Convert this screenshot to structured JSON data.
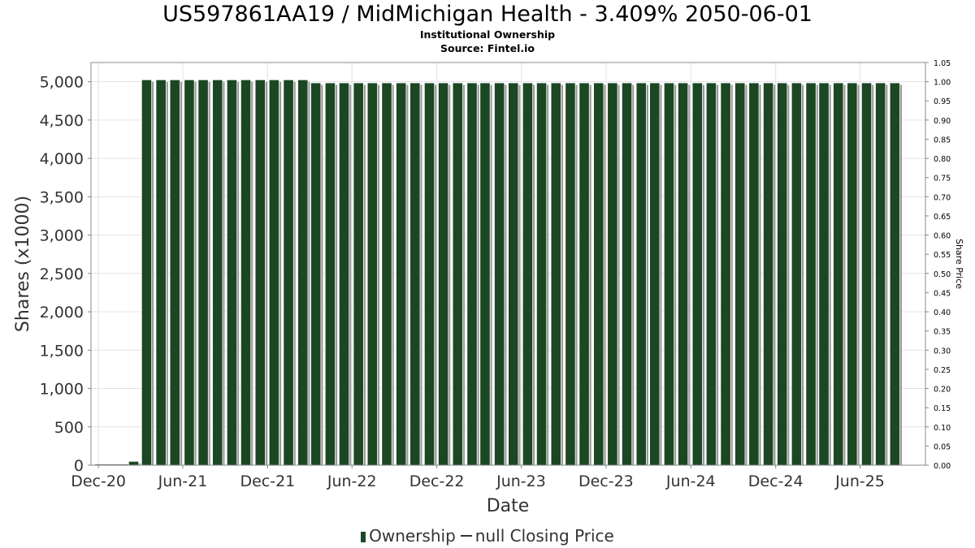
{
  "chart_data": {
    "type": "bar",
    "title": "US597861AA19 / MidMichigan Health - 3.409% 2050-06-01",
    "subtitle_lines": [
      "Institutional Ownership",
      "Source: Fintel.io"
    ],
    "xlabel": "Date",
    "ylabel": "Shares (x1000)",
    "y2label": "Share Price",
    "ylim": [
      0,
      5250
    ],
    "y2lim": [
      0,
      1.05
    ],
    "yticks": [
      0,
      500,
      1000,
      1500,
      2000,
      2500,
      3000,
      3500,
      4000,
      4500,
      5000
    ],
    "ytick_labels": [
      "0",
      "500",
      "1,000",
      "1,500",
      "2,000",
      "2,500",
      "3,000",
      "3,500",
      "4,000",
      "4,500",
      "5,000"
    ],
    "y2ticks": [
      "0.00",
      "0.05",
      "0.10",
      "0.15",
      "0.20",
      "0.25",
      "0.30",
      "0.35",
      "0.40",
      "0.45",
      "0.50",
      "0.55",
      "0.60",
      "0.65",
      "0.70",
      "0.75",
      "0.80",
      "0.85",
      "0.90",
      "0.95",
      "1.00",
      "1.05"
    ],
    "xlim": [
      "2020-11-15",
      "2025-10-20"
    ],
    "xticks": [
      {
        "date": "2020-12-01",
        "label": "Dec-20"
      },
      {
        "date": "2021-06-01",
        "label": "Jun-21"
      },
      {
        "date": "2021-12-01",
        "label": "Dec-21"
      },
      {
        "date": "2022-06-01",
        "label": "Jun-22"
      },
      {
        "date": "2022-12-01",
        "label": "Dec-22"
      },
      {
        "date": "2023-06-01",
        "label": "Jun-23"
      },
      {
        "date": "2023-12-01",
        "label": "Dec-23"
      },
      {
        "date": "2024-06-01",
        "label": "Jun-24"
      },
      {
        "date": "2024-12-01",
        "label": "Dec-24"
      },
      {
        "date": "2025-06-01",
        "label": "Jun-25"
      }
    ],
    "grid": true,
    "legend_position": "bottom",
    "legend": [
      {
        "name": "Ownership",
        "color": "#1b4723"
      },
      {
        "name": "null Closing Price",
        "color": "#333333"
      }
    ],
    "series": [
      {
        "name": "Ownership",
        "color": "#1b4723",
        "x": [
          "2021-02-15",
          "2021-03-15",
          "2021-04-15",
          "2021-05-15",
          "2021-06-15",
          "2021-07-15",
          "2021-08-15",
          "2021-09-15",
          "2021-10-15",
          "2021-11-15",
          "2021-12-15",
          "2022-01-15",
          "2022-02-15",
          "2022-03-15",
          "2022-04-15",
          "2022-05-15",
          "2022-06-15",
          "2022-07-15",
          "2022-08-15",
          "2022-09-15",
          "2022-10-15",
          "2022-11-15",
          "2022-12-15",
          "2023-01-15",
          "2023-02-15",
          "2023-03-15",
          "2023-04-15",
          "2023-05-15",
          "2023-06-15",
          "2023-07-15",
          "2023-08-15",
          "2023-09-15",
          "2023-10-15",
          "2023-11-15",
          "2023-12-15",
          "2024-01-15",
          "2024-02-15",
          "2024-03-15",
          "2024-04-15",
          "2024-05-15",
          "2024-06-15",
          "2024-07-15",
          "2024-08-15",
          "2024-09-15",
          "2024-10-15",
          "2024-11-15",
          "2024-12-15",
          "2025-01-15",
          "2025-02-15",
          "2025-03-15",
          "2025-04-15",
          "2025-05-15",
          "2025-06-15",
          "2025-07-15",
          "2025-08-15"
        ],
        "values": [
          50,
          5025,
          5025,
          5025,
          5025,
          5025,
          5025,
          5025,
          5025,
          5025,
          5025,
          5025,
          5025,
          4985,
          4985,
          4985,
          4985,
          4985,
          4985,
          4985,
          4985,
          4985,
          4985,
          4985,
          4985,
          4985,
          4985,
          4985,
          4985,
          4985,
          4985,
          4985,
          4985,
          4985,
          4985,
          4985,
          4985,
          4985,
          4985,
          4985,
          4985,
          4985,
          4985,
          4985,
          4985,
          4985,
          4985,
          4985,
          4985,
          4985,
          4985,
          4985,
          4985,
          4985,
          4985
        ]
      }
    ]
  }
}
